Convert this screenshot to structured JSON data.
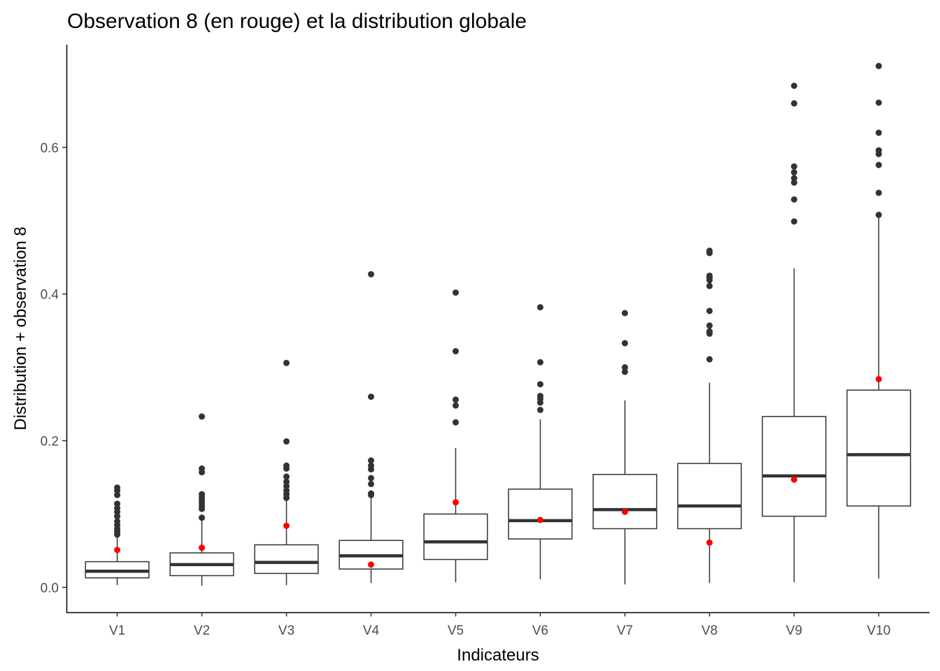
{
  "chart_data": {
    "type": "boxplot",
    "title": "Observation 8 (en rouge) et la distribution globale",
    "xlabel": "Indicateurs",
    "ylabel": "Distribution + observation 8",
    "categories": [
      "V1",
      "V2",
      "V3",
      "V4",
      "V5",
      "V6",
      "V7",
      "V8",
      "V9",
      "V10"
    ],
    "y_ticks": [
      0.0,
      0.2,
      0.4,
      0.6
    ],
    "y_tick_labels": [
      "0.0",
      "0.2",
      "0.4",
      "0.6"
    ],
    "ylim": [
      -0.034,
      0.74
    ],
    "grid": false,
    "legend": "none",
    "colors": {
      "box_line": "#333333",
      "outlier": "#333333",
      "observation": "#ff0000",
      "axis": "#000000"
    },
    "boxes": [
      {
        "name": "V1",
        "whisker_low": 0.003,
        "q1": 0.013,
        "median": 0.022,
        "q3": 0.035,
        "whisker_high": 0.068,
        "outliers": [
          0.072,
          0.076,
          0.08,
          0.085,
          0.09,
          0.097,
          0.103,
          0.108,
          0.114,
          0.126,
          0.132,
          0.136
        ],
        "observation": 0.051
      },
      {
        "name": "V2",
        "whisker_low": 0.002,
        "q1": 0.016,
        "median": 0.031,
        "q3": 0.047,
        "whisker_high": 0.093,
        "outliers": [
          0.095,
          0.107,
          0.111,
          0.115,
          0.119,
          0.123,
          0.127,
          0.157,
          0.162,
          0.233
        ],
        "observation": 0.054
      },
      {
        "name": "V3",
        "whisker_low": 0.003,
        "q1": 0.019,
        "median": 0.034,
        "q3": 0.058,
        "whisker_high": 0.118,
        "outliers": [
          0.122,
          0.127,
          0.132,
          0.138,
          0.144,
          0.151,
          0.162,
          0.166,
          0.199,
          0.306
        ],
        "observation": 0.084
      },
      {
        "name": "V4",
        "whisker_low": 0.006,
        "q1": 0.025,
        "median": 0.043,
        "q3": 0.064,
        "whisker_high": 0.124,
        "outliers": [
          0.126,
          0.128,
          0.141,
          0.149,
          0.161,
          0.166,
          0.173,
          0.26,
          0.427
        ],
        "observation": 0.031
      },
      {
        "name": "V5",
        "whisker_low": 0.007,
        "q1": 0.038,
        "median": 0.062,
        "q3": 0.1,
        "whisker_high": 0.19,
        "outliers": [
          0.225,
          0.248,
          0.256,
          0.322,
          0.402
        ],
        "observation": 0.116
      },
      {
        "name": "V6",
        "whisker_low": 0.011,
        "q1": 0.066,
        "median": 0.091,
        "q3": 0.134,
        "whisker_high": 0.229,
        "outliers": [
          0.242,
          0.252,
          0.257,
          0.261,
          0.277,
          0.307,
          0.382
        ],
        "observation": 0.092
      },
      {
        "name": "V7",
        "whisker_low": 0.004,
        "q1": 0.08,
        "median": 0.106,
        "q3": 0.154,
        "whisker_high": 0.255,
        "outliers": [
          0.294,
          0.3,
          0.333,
          0.374
        ],
        "observation": 0.103
      },
      {
        "name": "V8",
        "whisker_low": 0.006,
        "q1": 0.08,
        "median": 0.111,
        "q3": 0.169,
        "whisker_high": 0.279,
        "outliers": [
          0.311,
          0.346,
          0.349,
          0.357,
          0.377,
          0.411,
          0.419,
          0.422,
          0.425,
          0.456,
          0.459
        ],
        "observation": 0.061
      },
      {
        "name": "V9",
        "whisker_low": 0.007,
        "q1": 0.097,
        "median": 0.152,
        "q3": 0.233,
        "whisker_high": 0.435,
        "outliers": [
          0.499,
          0.529,
          0.552,
          0.558,
          0.566,
          0.574,
          0.66,
          0.684
        ],
        "observation": 0.147
      },
      {
        "name": "V10",
        "whisker_low": 0.012,
        "q1": 0.111,
        "median": 0.181,
        "q3": 0.269,
        "whisker_high": 0.507,
        "outliers": [
          0.508,
          0.538,
          0.576,
          0.591,
          0.596,
          0.62,
          0.661,
          0.711
        ],
        "observation": 0.284
      }
    ]
  }
}
